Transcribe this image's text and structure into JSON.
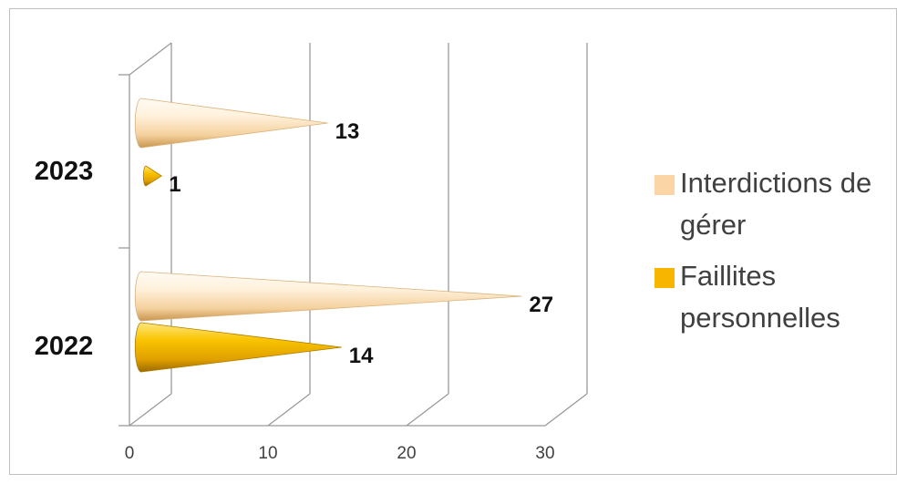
{
  "chart_data": {
    "type": "bar",
    "style": "3d-cone-horizontal",
    "categories": [
      "2023",
      "2022"
    ],
    "series": [
      {
        "name": "Interdictions de gérer",
        "values": [
          13,
          27
        ],
        "color": "#fcd5a6"
      },
      {
        "name": "Faillites personnelles",
        "values": [
          1,
          14
        ],
        "color": "#f7b500"
      }
    ],
    "xlim": [
      0,
      30
    ],
    "xticks": [
      0,
      10,
      20,
      30
    ],
    "xtick_labels": [
      "0",
      "10",
      "20",
      "30"
    ],
    "grid": true,
    "legend_position": "right"
  }
}
